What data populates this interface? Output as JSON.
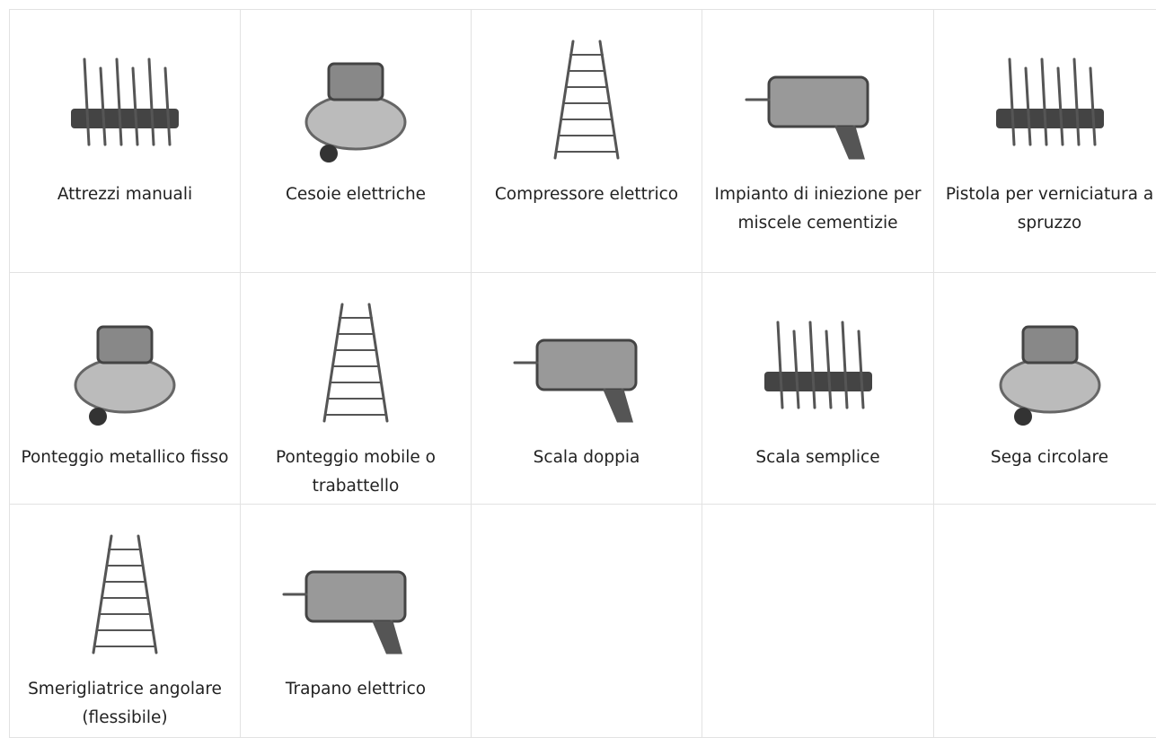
{
  "grid": {
    "cells": [
      {
        "label": "Attrezzi manuali"
      },
      {
        "label": "Cesoie elettriche"
      },
      {
        "label": "Compressore elettrico"
      },
      {
        "label": "Impianto di iniezione per miscele cementizie"
      },
      {
        "label": "Pistola per verniciatura a spruzzo"
      },
      {
        "label": "Ponteggio metallico fisso"
      },
      {
        "label": "Ponteggio mobile o trabattello"
      },
      {
        "label": "Scala doppia"
      },
      {
        "label": "Scala semplice"
      },
      {
        "label": "Sega circolare"
      },
      {
        "label": "Smerigliatrice angolare (flessibile)"
      },
      {
        "label": "Trapano elettrico"
      }
    ]
  }
}
